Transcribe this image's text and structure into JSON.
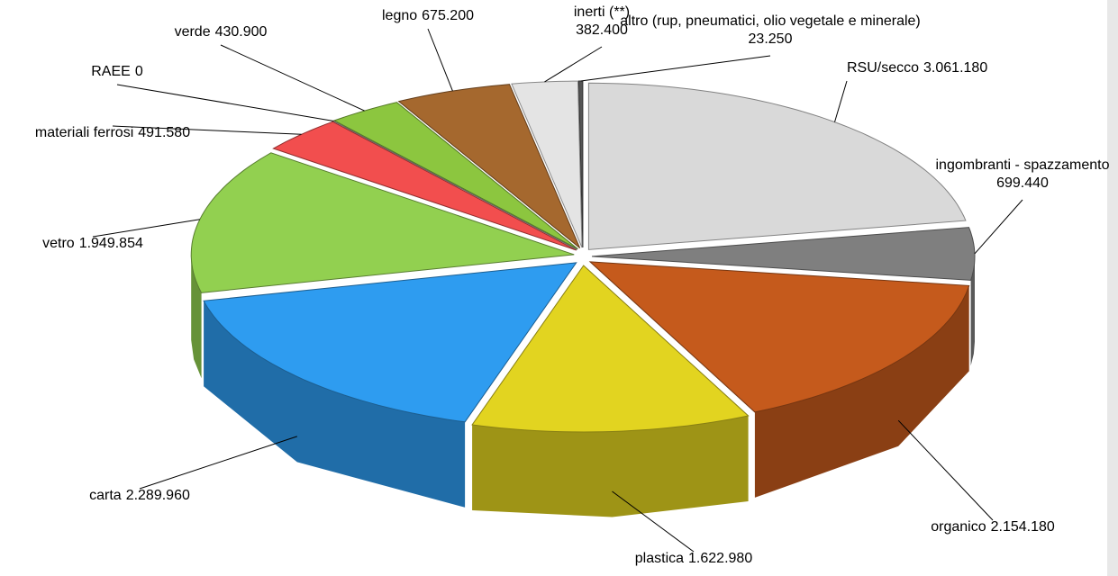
{
  "chart_data": {
    "type": "pie",
    "categories": [
      "RSU/secco",
      "ingombranti - spazzamento",
      "organico",
      "plastica",
      "carta",
      "vetro",
      "materiali ferrosi",
      "RAEE",
      "verde",
      "legno",
      "inerti (**)",
      "altro (rup, pneumatici, olio vegetale e minerale)"
    ],
    "values": [
      3061180,
      699440,
      2154180,
      1622980,
      2289960,
      1949854,
      491580,
      0,
      430900,
      675200,
      382400,
      23250
    ],
    "value_labels": [
      "3.061.180",
      "699.440",
      "2.154.180",
      "1.622.980",
      "2.289.960",
      "1.949.854",
      "491.580",
      "0",
      "430.900",
      "675.200",
      "382.400",
      "23.250"
    ],
    "colors": [
      "#d9d9d9",
      "#7f7f7f",
      "#c55a1c",
      "#e2d420",
      "#2e9cf0",
      "#92d050",
      "#f24e4e",
      "#9e9e9e",
      "#8cc63f",
      "#a5682e",
      "#e4e4e4",
      "#555555"
    ]
  }
}
